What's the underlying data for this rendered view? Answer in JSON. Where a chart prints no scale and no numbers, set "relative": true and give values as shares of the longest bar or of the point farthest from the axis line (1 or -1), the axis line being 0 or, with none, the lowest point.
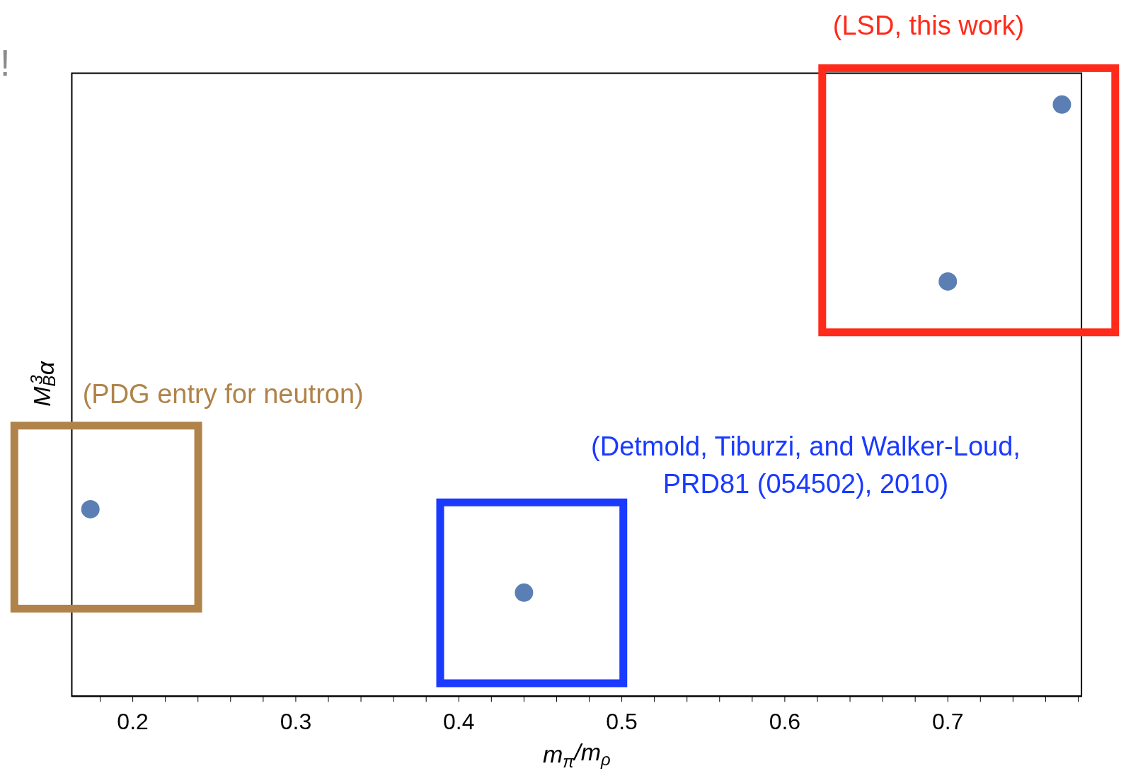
{
  "chart_data": {
    "type": "scatter",
    "relative": true,
    "xlabel": "m$_{π}$/m$_{ρ}$",
    "ylabel": "M$_{B}$$^{3}$α",
    "marker": "circle",
    "series": [
      {
        "color": "#5b7fb5",
        "x": [
          0.174,
          0.44,
          0.7,
          0.77
        ],
        "values": [
          0.316,
          0.175,
          0.701,
          1
        ]
      }
    ],
    "xlim": [
      0.1626,
      0.782
    ],
    "xticks": [
      {
        "value": 0.18,
        "label": null
      },
      0.2,
      {
        "value": 0.22,
        "label": null
      },
      {
        "value": 0.24,
        "label": null
      },
      {
        "value": 0.26,
        "label": null
      },
      {
        "value": 0.28,
        "label": null
      },
      0.3,
      {
        "value": 0.32,
        "label": null
      },
      {
        "value": 0.34,
        "label": null
      },
      {
        "value": 0.36,
        "label": null
      },
      {
        "value": 0.38,
        "label": null
      },
      0.4,
      {
        "value": 0.42,
        "label": null
      },
      {
        "value": 0.44,
        "label": null
      },
      {
        "value": 0.46,
        "label": null
      },
      {
        "value": 0.48,
        "label": null
      },
      0.5,
      {
        "value": 0.52,
        "label": null
      },
      {
        "value": 0.54,
        "label": null
      },
      {
        "value": 0.56,
        "label": null
      },
      {
        "value": 0.58,
        "label": null
      },
      0.6,
      {
        "value": 0.62,
        "label": null
      },
      {
        "value": 0.64,
        "label": null
      },
      {
        "value": 0.66,
        "label": null
      },
      {
        "value": 0.68,
        "label": null
      },
      0.7,
      {
        "value": 0.72,
        "label": null
      },
      {
        "value": 0.74,
        "label": null
      },
      {
        "value": 0.76,
        "label": null
      },
      {
        "value": 0.78,
        "label": null
      }
    ],
    "annotations": [
      "!",
      "(LSD, this work)",
      "(PDG entry for neutron)",
      "(Detmold, Tiburzi, and Walker-Loud,\nPRD81 (054502), 2010)"
    ]
  }
}
